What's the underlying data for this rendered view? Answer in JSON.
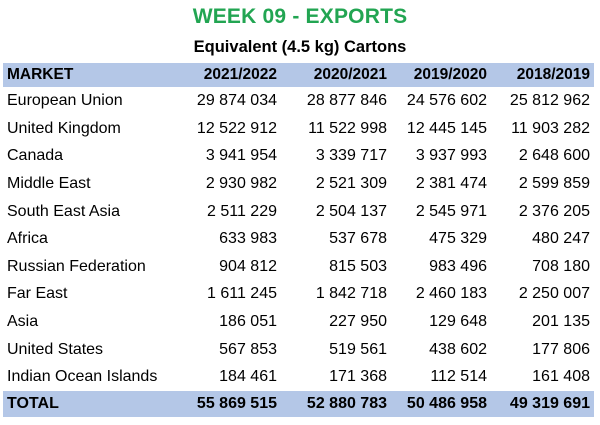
{
  "title": "WEEK 09 - EXPORTS",
  "subtitle": "Equivalent (4.5 kg) Cartons",
  "colors": {
    "title": "#22a552",
    "header_fill": "#b4c7e7"
  },
  "table": {
    "headers": [
      "MARKET",
      "2021/2022",
      "2020/2021",
      "2019/2020",
      "2018/2019"
    ],
    "rows": [
      [
        "European Union",
        "29 874 034",
        "28 877 846",
        "24 576 602",
        "25 812 962"
      ],
      [
        "United Kingdom",
        "12 522 912",
        "11 522 998",
        "12 445 145",
        "11 903 282"
      ],
      [
        "Canada",
        "3 941 954",
        "3 339 717",
        "3 937 993",
        "2 648 600"
      ],
      [
        "Middle East",
        "2 930 982",
        "2 521 309",
        "2 381 474",
        "2 599 859"
      ],
      [
        "South East Asia",
        "2 511 229",
        "2 504 137",
        "2 545 971",
        "2 376 205"
      ],
      [
        "Africa",
        "633 983",
        "537 678",
        "475 329",
        "480 247"
      ],
      [
        "Russian Federation",
        "904 812",
        "815 503",
        "983 496",
        "708 180"
      ],
      [
        "Far East",
        "1 611 245",
        "1 842 718",
        "2 460 183",
        "2 250 007"
      ],
      [
        "Asia",
        "186 051",
        "227 950",
        "129 648",
        "201 135"
      ],
      [
        "United States",
        "567 853",
        "519 561",
        "438 602",
        "177 806"
      ],
      [
        "Indian Ocean Islands",
        "184 461",
        "171 368",
        "112 514",
        "161 408"
      ]
    ],
    "total": [
      "TOTAL",
      "55 869 515",
      "52 880 783",
      "50 486 958",
      "49 319 691"
    ]
  }
}
